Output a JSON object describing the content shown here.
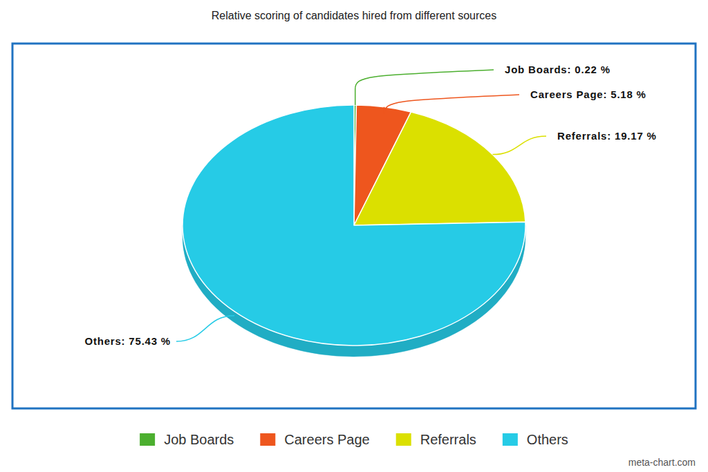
{
  "chart_data": {
    "type": "pie",
    "title": "Relative scoring of candidates hired from different sources",
    "categories": [
      "Job Boards",
      "Careers Page",
      "Referrals",
      "Others"
    ],
    "values": [
      0.22,
      5.18,
      19.17,
      75.43
    ],
    "value_labels": [
      "Job Boards: 0.22 %",
      "Careers Page: 5.18 %",
      "Referrals: 19.17 %",
      "Others: 75.43 %"
    ],
    "colors": [
      "#4caf2f",
      "#ee561e",
      "#dbe000",
      "#26cbe6"
    ],
    "data_labels": true,
    "legend": "bottom",
    "annotations": [
      "meta-chart.com"
    ]
  }
}
